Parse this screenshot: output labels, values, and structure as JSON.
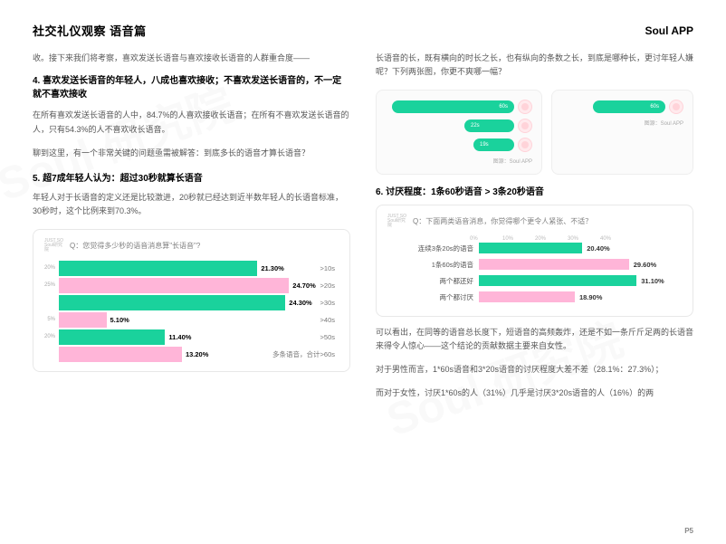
{
  "page_title": "社交礼仪观察 语音篇",
  "brand": "Soul APP",
  "page_number": "P5",
  "watermark": "Soul 研究院",
  "col_left": {
    "intro": "收。接下来我们将考察，喜欢发送长语音与喜欢接收长语音的人群重合度——",
    "s4_title": "4. 喜欢发送长语音的年轻人，八成也喜欢接收；不喜欢发送长语音的，不一定就不喜欢接收",
    "s4_p1": "在所有喜欢发送长语音的人中，84.7%的人喜欢接收长语音；在所有不喜欢发送长语音的人，只有54.3%的人不喜欢收长语音。",
    "s4_p2": "聊到这里，有一个非常关键的问题亟需被解答：到底多长的语音才算长语音？",
    "s5_title": "5. 超7成年轻人认为：超过30秒就算长语音",
    "s5_p1": "年轻人对于长语音的定义还是比较激进，20秒就已经达到近半数年轻人的长语音标准，30秒时，这个比例来到70.3%。",
    "chart1": {
      "question": "Q：您觉得多少秒的语音消息算\"长语音\"?",
      "type": "horizontal-bar",
      "max_pct": 30,
      "bars": [
        {
          "tick": "20%",
          "value": "21.30%",
          "width_pct": 71.0,
          "color": "#1ad29c",
          "label": ">10s"
        },
        {
          "tick": "25%",
          "value": "24.70%",
          "width_pct": 82.3,
          "color": "#ffb5d8",
          "label": ">20s"
        },
        {
          "tick": "",
          "value": "24.30%",
          "width_pct": 81.0,
          "color": "#1ad29c",
          "label": ">30s"
        },
        {
          "tick": "5%",
          "value": "5.10%",
          "width_pct": 17.0,
          "color": "#ffb5d8",
          "label": ">40s"
        },
        {
          "tick": "20%",
          "value": "11.40%",
          "width_pct": 38.0,
          "color": "#1ad29c",
          "label": ">50s"
        },
        {
          "tick": "",
          "value": "13.20%",
          "width_pct": 44.0,
          "color": "#ffb5d8",
          "label": "多条语音，合计>60s"
        }
      ]
    }
  },
  "col_right": {
    "intro": "长语音的长，既有横向的时长之长，也有纵向的条数之长，到底是哪种长，更讨年轻人嫌呢？下列两张图，你更不爽哪一幅？",
    "bubbles": {
      "left_card": {
        "times": [
          "22s",
          "19s"
        ],
        "source": "图源：Soul APP"
      },
      "right_card": {
        "times": [
          "60s"
        ],
        "source": "图源：Soul APP"
      }
    },
    "s6_title": "6. 讨厌程度：1条60秒语音 > 3条20秒语音",
    "chart2": {
      "question": "Q：下面两类语音消息，你觉得哪个更令人紧张、不适？",
      "type": "horizontal-bar",
      "axis_ticks": [
        "0%",
        "10%",
        "20%",
        "30%",
        "40%"
      ],
      "max_pct": 40,
      "bars": [
        {
          "label": "连续3条20s的语音",
          "value": "20.40%",
          "width_pct": 51.0,
          "color": "#1ad29c"
        },
        {
          "label": "1条60s的语音",
          "value": "29.60%",
          "width_pct": 74.0,
          "color": "#ffb5d8"
        },
        {
          "label": "两个都还好",
          "value": "31.10%",
          "width_pct": 77.8,
          "color": "#1ad29c"
        },
        {
          "label": "两个都讨厌",
          "value": "18.90%",
          "width_pct": 47.3,
          "color": "#ffb5d8"
        }
      ]
    },
    "p1": "可以看出，在同等的语音总长度下，短语音的高频轰炸，还是不如一条斤斤足两的长语音来得令人惊心——这个结论的贡献数据主要来自女性。",
    "p2": "对于男性而言，1*60s语音和3*20s语音的讨厌程度大差不差（28.1%：27.3%）；",
    "p3": "而对于女性，讨厌1*60s的人（31%）几乎是讨厌3*20s语音的人（16%）的两"
  }
}
